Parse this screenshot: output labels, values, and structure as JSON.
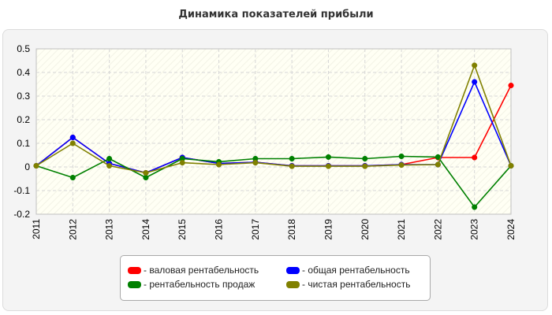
{
  "chart_data": {
    "type": "line",
    "title": "Динамика показателей прибыли",
    "x": [
      "2011",
      "2012",
      "2013",
      "2014",
      "2015",
      "2016",
      "2017",
      "2018",
      "2019",
      "2020",
      "2021",
      "2022",
      "2023",
      "2024"
    ],
    "ylim": [
      -0.2,
      0.5
    ],
    "yticks": [
      "-0.2",
      "-0.1",
      "0",
      "0.1",
      "0.2",
      "0.3",
      "0.4",
      "0.5"
    ],
    "grid": true,
    "legend_position": "bottom",
    "series": [
      {
        "name": "- валовая рентабельность",
        "color": "#ff0000",
        "values": [
          0.005,
          0.125,
          0.015,
          -0.025,
          0.04,
          0.015,
          0.02,
          0.005,
          0.005,
          0.005,
          0.01,
          0.04,
          0.04,
          0.345
        ]
      },
      {
        "name": "- общая рентабельность",
        "color": "#0000ff",
        "values": [
          0.005,
          0.125,
          0.015,
          -0.025,
          0.04,
          0.015,
          0.02,
          0.005,
          0.005,
          0.005,
          0.01,
          0.01,
          0.36,
          0.005
        ]
      },
      {
        "name": "- рентабельность продаж",
        "color": "#008000",
        "values": [
          0.005,
          -0.045,
          0.035,
          -0.045,
          0.035,
          0.022,
          0.035,
          0.035,
          0.042,
          0.035,
          0.045,
          0.042,
          -0.17,
          0.005
        ]
      },
      {
        "name": "- чистая рентабельность",
        "color": "#808000",
        "values": [
          0.005,
          0.1,
          0.005,
          -0.025,
          0.018,
          0.01,
          0.018,
          0.003,
          0.003,
          0.003,
          0.008,
          0.01,
          0.43,
          0.005
        ]
      }
    ]
  }
}
